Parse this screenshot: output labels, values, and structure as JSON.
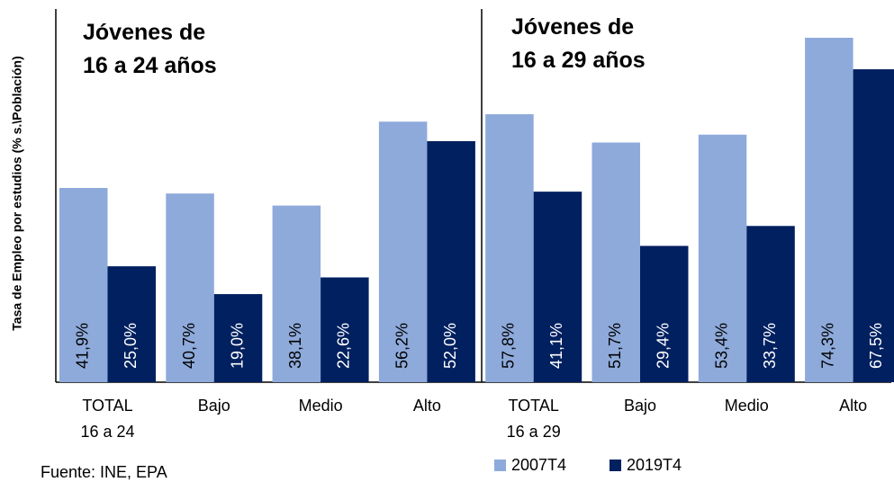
{
  "chart_data": {
    "type": "bar",
    "y_label": "Tasa de Empleo por estudios (% s.\\Población)",
    "annotations": [
      "Jóvenes de\n16 a 24 años",
      "Jóvenes de\n16 a 29 años"
    ],
    "categories": [
      "TOTAL\n16 a 24",
      "Bajo",
      "Medio",
      "Alto",
      "TOTAL\n16 a 29",
      "Bajo",
      "Medio",
      "Alto"
    ],
    "series": [
      {
        "name": "2007T4",
        "color": "#8eaadb",
        "values": [
          41.9,
          40.7,
          38.1,
          56.2,
          57.8,
          51.7,
          53.4,
          74.3
        ],
        "value_labels": [
          "41,9%",
          "40,7%",
          "38,1%",
          "56,2%",
          "57,8%",
          "51,7%",
          "53,4%",
          "74,3%"
        ]
      },
      {
        "name": "2019T4",
        "color": "#002060",
        "values": [
          25.0,
          19.0,
          22.6,
          52.0,
          41.1,
          29.4,
          33.7,
          67.5
        ],
        "value_labels": [
          "25,0%",
          "19,0%",
          "22,6%",
          "52,0%",
          "41,1%",
          "29,4%",
          "33,7%",
          "67,5%"
        ]
      }
    ],
    "ylim": [
      0,
      80
    ],
    "source": "Fuente: INE, EPA"
  }
}
